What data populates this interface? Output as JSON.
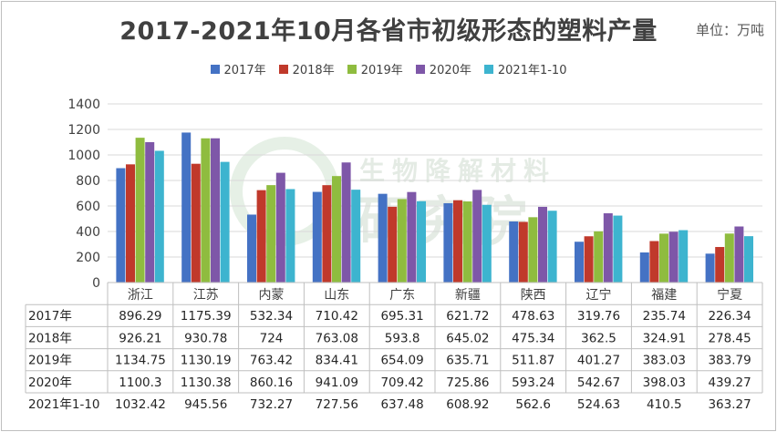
{
  "header": {
    "title": "2017-2021年10月各省市初级形态的塑料产量",
    "unit": "单位：万吨"
  },
  "watermark": {
    "sub": "生物降解材料",
    "main": "研究院"
  },
  "colors": {
    "axis": "#bfbfbf",
    "grid": "#d9d9d9"
  },
  "chart_data": {
    "type": "bar",
    "title": "2017-2021年10月各省市初级形态的塑料产量",
    "ylim": [
      0,
      1400
    ],
    "yticks": [
      0,
      200,
      400,
      600,
      800,
      1000,
      1200,
      1400
    ],
    "categories": [
      "浙江",
      "江苏",
      "内蒙",
      "山东",
      "广东",
      "新疆",
      "陕西",
      "辽宁",
      "福建",
      "宁夏"
    ],
    "series": [
      {
        "name": "2017年",
        "color": "#4472c4",
        "values": [
          896.29,
          1175.39,
          532.34,
          710.42,
          695.31,
          621.72,
          478.63,
          319.76,
          235.74,
          226.34
        ]
      },
      {
        "name": "2018年",
        "color": "#c0392b",
        "values": [
          926.21,
          930.78,
          724,
          763.08,
          593.8,
          645.02,
          475.34,
          362.5,
          324.91,
          278.45
        ]
      },
      {
        "name": "2019年",
        "color": "#8fbc3f",
        "values": [
          1134.75,
          1130.19,
          763.42,
          834.41,
          654.09,
          635.71,
          511.87,
          401.27,
          383.03,
          383.79
        ]
      },
      {
        "name": "2020年",
        "color": "#7e57a8",
        "values": [
          1100.3,
          1130.38,
          860.16,
          941.09,
          709.42,
          725.86,
          593.24,
          542.67,
          398.03,
          439.27
        ]
      },
      {
        "name": "2021年1-10",
        "color": "#3db4cf",
        "values": [
          1032.42,
          945.56,
          732.27,
          727.56,
          637.48,
          608.92,
          562.6,
          524.63,
          410.5,
          363.27
        ]
      }
    ],
    "grid": true,
    "legend_position": "top",
    "data_table": true
  }
}
